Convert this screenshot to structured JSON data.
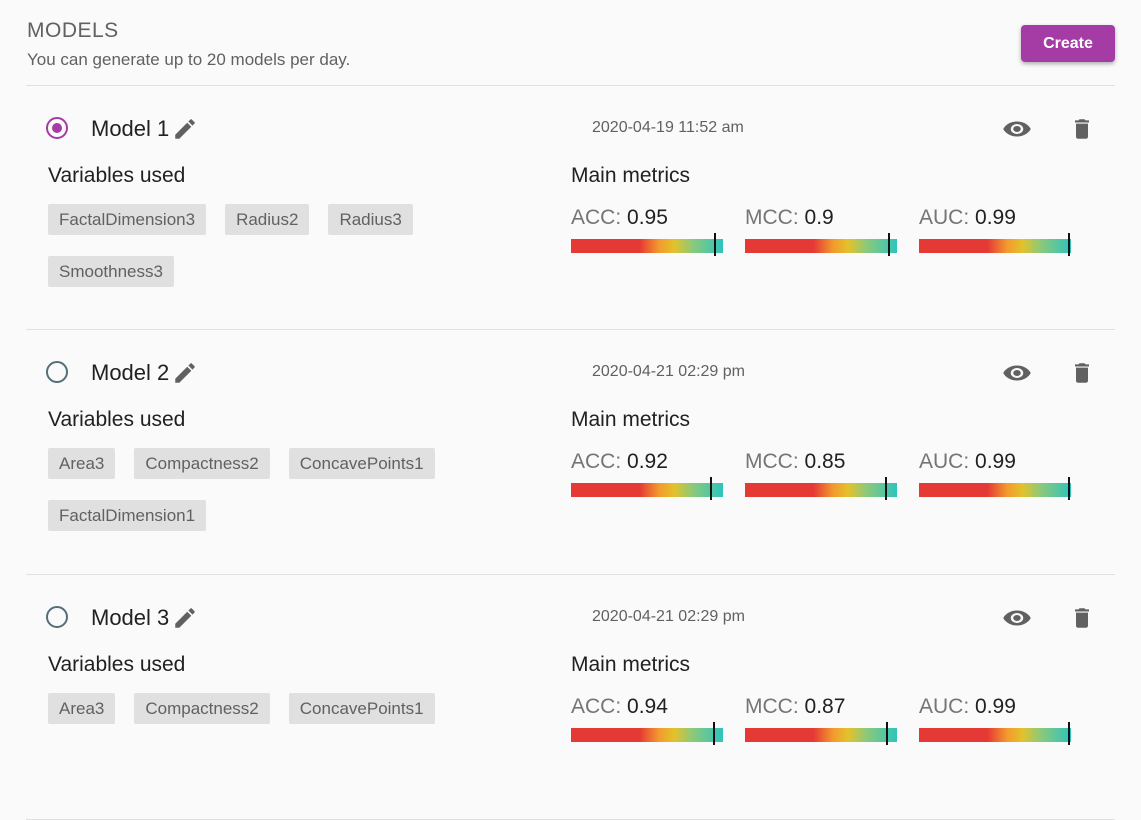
{
  "header": {
    "title": "MODELS",
    "subtitle": "You can generate up to 20 models per day.",
    "create_label": "Create"
  },
  "labels": {
    "variables_used": "Variables used",
    "main_metrics": "Main metrics"
  },
  "colors": {
    "accent": "#a53ba5",
    "chip_bg": "#e0e0e0",
    "radio_unselected": "#546e7a"
  },
  "models": [
    {
      "name": "Model 1",
      "selected": true,
      "date": "2020-04-19 11:52 am",
      "variables": [
        "FactalDimension3",
        "Radius2",
        "Radius3",
        "Smoothness3"
      ],
      "metrics": [
        {
          "name": "ACC:",
          "value": "0.95",
          "level": 0.95
        },
        {
          "name": "MCC:",
          "value": "0.9",
          "level": 0.95
        },
        {
          "name": "AUC:",
          "value": "0.99",
          "level": 0.99
        }
      ]
    },
    {
      "name": "Model 2",
      "selected": false,
      "date": "2020-04-21 02:29 pm",
      "variables": [
        "Area3",
        "Compactness2",
        "ConcavePoints1",
        "FactalDimension1"
      ],
      "metrics": [
        {
          "name": "ACC:",
          "value": "0.92",
          "level": 0.92
        },
        {
          "name": "MCC:",
          "value": "0.85",
          "level": 0.925
        },
        {
          "name": "AUC:",
          "value": "0.99",
          "level": 0.99
        }
      ]
    },
    {
      "name": "Model 3",
      "selected": false,
      "date": "2020-04-21 02:29 pm",
      "variables": [
        "Area3",
        "Compactness2",
        "ConcavePoints1"
      ],
      "metrics": [
        {
          "name": "ACC:",
          "value": "0.94",
          "level": 0.94
        },
        {
          "name": "MCC:",
          "value": "0.87",
          "level": 0.935
        },
        {
          "name": "AUC:",
          "value": "0.99",
          "level": 0.99
        }
      ]
    }
  ]
}
